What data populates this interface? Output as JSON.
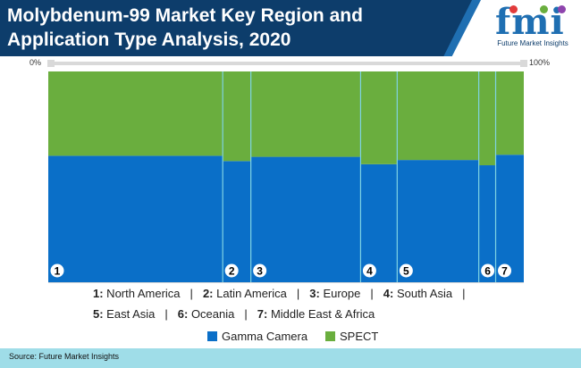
{
  "title": "Molybdenum-99 Market Key Region and Application Type Analysis, 2020",
  "logo": {
    "word": "fmi",
    "subtitle": "Future Market Insights"
  },
  "axis": {
    "left": "0%",
    "right": "100%"
  },
  "chart_data": {
    "type": "bar",
    "subtype": "marimekko",
    "categories": [
      "1",
      "2",
      "3",
      "4",
      "5",
      "6",
      "7"
    ],
    "widths": [
      31,
      5,
      19.5,
      6.5,
      14.5,
      3,
      5
    ],
    "series": [
      {
        "name": "Gamma Camera",
        "color": "#0a6fc8",
        "values": [
          60,
          57.5,
          59.5,
          56,
          58,
          55.5,
          60.5
        ]
      },
      {
        "name": "SPECT",
        "color": "#6aae3e",
        "values": [
          40,
          42.5,
          40.5,
          44,
          42,
          44.5,
          39.5
        ]
      }
    ],
    "ylim": [
      0,
      100
    ],
    "legend_position": "bottom"
  },
  "region_key_line1": [
    {
      "num": "1:",
      "name": "North America"
    },
    {
      "num": "2:",
      "name": "Latin America"
    },
    {
      "num": "3:",
      "name": "Europe"
    },
    {
      "num": "4:",
      "name": "South Asia"
    }
  ],
  "region_key_line2": [
    {
      "num": "5:",
      "name": "East Asia"
    },
    {
      "num": "6:",
      "name": "Oceania"
    },
    {
      "num": "7:",
      "name": "Middle East & Africa"
    }
  ],
  "separator": "|",
  "source": "Source: Future Market Insights"
}
